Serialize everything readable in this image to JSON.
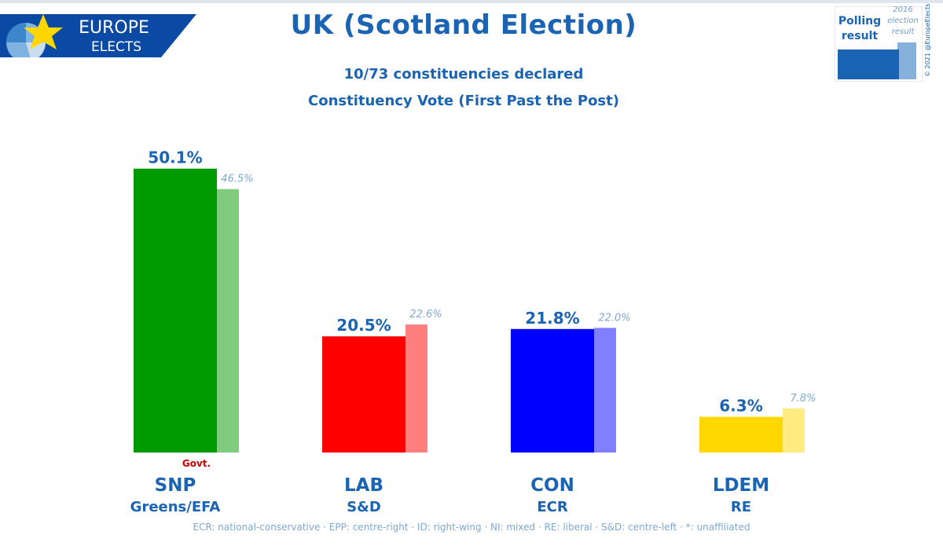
{
  "logo": {
    "line1": "EUROPE",
    "line2": "ELECTS"
  },
  "title": "UK (Scotland Election)",
  "subtitle1": "10/73 constituencies declared",
  "subtitle2": "Constituency Vote (First Past the Post)",
  "legend": {
    "current": "Polling result",
    "previous": "2016 election result"
  },
  "copyright": "© 2021 @EuropeElects",
  "footnote": "ECR: national-conservative · EPP: centre-right · ID: right-wing · NI: mixed · RE: liberal · S&D: centre-left · *: unaffiliated",
  "chart_data": {
    "type": "bar",
    "ylim": [
      0,
      52
    ],
    "categories": [
      "SNP",
      "LAB",
      "CON",
      "LDEM"
    ],
    "groups": [
      "Greens/EFA",
      "S&D",
      "ECR",
      "RE"
    ],
    "series": [
      {
        "name": "Polling result",
        "values": [
          50.1,
          20.5,
          21.8,
          6.3
        ],
        "labels": [
          "50.1%",
          "20.5%",
          "21.8%",
          "6.3%"
        ]
      },
      {
        "name": "2016 election result",
        "values": [
          46.5,
          22.6,
          22.0,
          7.8
        ],
        "labels": [
          "46.5%",
          "22.6%",
          "22.0%",
          "7.8%"
        ]
      }
    ],
    "colors": [
      "#009900",
      "#ff0000",
      "#0000ff",
      "#ffd700"
    ],
    "prev_colors": [
      "#7fcc7f",
      "#ff7f7f",
      "#7f7fff",
      "#ffeb7f"
    ],
    "annotation": {
      "category": "SNP",
      "text": "Govt.",
      "color": "#cc0000"
    }
  }
}
